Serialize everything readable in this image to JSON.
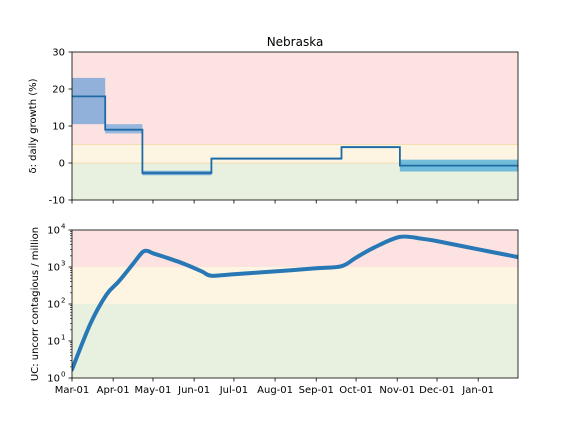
{
  "chart_data": [
    {
      "type": "line",
      "title": "Nebraska",
      "ylabel": "δ: daily growth (%)",
      "ylim": [
        -10,
        30
      ],
      "yticks": [
        -10,
        0,
        10,
        20,
        30
      ],
      "xlim": [
        "2020-03-01",
        "2021-01-31"
      ],
      "bands": [
        {
          "from": -10,
          "to": 0,
          "color": "#e8f0e0"
        },
        {
          "from": 0,
          "to": 5,
          "color": "#fdf5e2"
        },
        {
          "from": 5,
          "to": 30,
          "color": "#fde2e2"
        }
      ],
      "band_guides": [
        0,
        5
      ],
      "series": [
        {
          "line_color": "#1f6aa5",
          "segments": [
            {
              "start": "2020-03-01",
              "end": "2020-03-26",
              "value": 18,
              "low": 10.5,
              "high": 23
            },
            {
              "start": "2020-03-26",
              "end": "2020-04-23",
              "value": 9,
              "low": 8,
              "high": 10.5
            },
            {
              "start": "2020-04-23",
              "end": "2020-06-14",
              "value": -2.7,
              "low": -3.3,
              "high": -2.1
            },
            {
              "start": "2020-06-14",
              "end": "2020-09-20",
              "value": 1.2,
              "low": 0.9,
              "high": 1.5
            },
            {
              "start": "2020-09-20",
              "end": "2020-11-03",
              "value": 4.3,
              "low": 4.0,
              "high": 4.6
            },
            {
              "start": "2020-11-03",
              "end": "2021-01-31",
              "value": -0.7,
              "low": -2.3,
              "high": 0.9
            }
          ]
        }
      ]
    },
    {
      "type": "line",
      "ylabel": "UC: uncorr contagious / million",
      "yscale": "log",
      "ylim": [
        1,
        10000
      ],
      "yticks": [
        1,
        10,
        100,
        1000,
        10000
      ],
      "ytick_labels": [
        {
          "base": "10",
          "exp": "0"
        },
        {
          "base": "10",
          "exp": "1"
        },
        {
          "base": "10",
          "exp": "2"
        },
        {
          "base": "10",
          "exp": "3"
        },
        {
          "base": "10",
          "exp": "4"
        }
      ],
      "xlim": [
        "2020-03-01",
        "2021-01-31"
      ],
      "xticks": [
        "2020-03-01",
        "2020-04-01",
        "2020-05-01",
        "2020-06-01",
        "2020-07-01",
        "2020-08-01",
        "2020-09-01",
        "2020-10-01",
        "2020-11-01",
        "2020-12-01",
        "2021-01-01"
      ],
      "xtick_labels": [
        "Mar-01",
        "Apr-01",
        "May-01",
        "Jun-01",
        "Jul-01",
        "Aug-01",
        "Sep-01",
        "Oct-01",
        "Nov-01",
        "Dec-01",
        "Jan-01"
      ],
      "bands": [
        {
          "from": 1,
          "to": 100,
          "color": "#e8f0e0"
        },
        {
          "from": 100,
          "to": 1000,
          "color": "#fdf5e2"
        },
        {
          "from": 1000,
          "to": 10000,
          "color": "#fde2e2"
        }
      ],
      "series": [
        {
          "line_color": "#2878b5",
          "points": [
            [
              "2020-03-01",
              1.7
            ],
            [
              "2020-03-15",
              30
            ],
            [
              "2020-03-27",
              180
            ],
            [
              "2020-04-05",
              400
            ],
            [
              "2020-04-15",
              1100
            ],
            [
              "2020-04-23",
              2500
            ],
            [
              "2020-04-27",
              2700
            ],
            [
              "2020-05-01",
              2350
            ],
            [
              "2020-05-10",
              1850
            ],
            [
              "2020-05-25",
              1200
            ],
            [
              "2020-06-07",
              750
            ],
            [
              "2020-06-14",
              580
            ],
            [
              "2020-07-01",
              640
            ],
            [
              "2020-08-01",
              760
            ],
            [
              "2020-09-01",
              920
            ],
            [
              "2020-09-20",
              1050
            ],
            [
              "2020-10-01",
              1800
            ],
            [
              "2020-10-15",
              3400
            ],
            [
              "2020-11-03",
              6500
            ],
            [
              "2020-11-20",
              5800
            ],
            [
              "2020-12-01",
              5000
            ],
            [
              "2021-01-01",
              3000
            ],
            [
              "2021-01-31",
              1850
            ]
          ]
        }
      ]
    }
  ]
}
